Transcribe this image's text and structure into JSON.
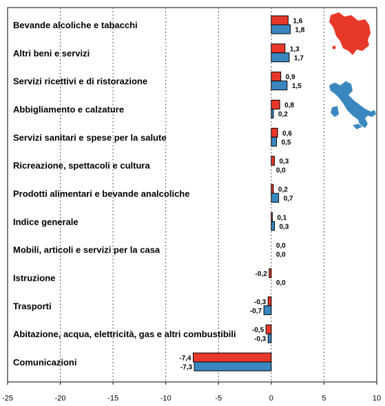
{
  "chart_data": {
    "type": "bar",
    "orientation": "horizontal",
    "categories": [
      "Bevande alcoliche e tabacchi",
      "Altri beni e servizi",
      "Servizi ricettivi e di ristorazione",
      "Abbigliamento e calzature",
      "Servizi sanitari e spese per la salute",
      "Ricreazione, spettacoli e cultura",
      "Prodotti alimentari e bevande analcoliche",
      "Indice generale",
      "Mobili, articoli e servizi per la casa",
      "Istruzione",
      "Trasporti",
      "Abitazione, acqua, elettricità, gas e altri combustibili",
      "Comunicazioni"
    ],
    "series": [
      {
        "color": "#e8382a",
        "values": [
          1.6,
          1.3,
          0.9,
          0.8,
          0.6,
          0.3,
          0.2,
          0.1,
          0.0,
          -0.2,
          -0.3,
          -0.5,
          -7.4
        ],
        "labels": [
          "1,6",
          "1,3",
          "0,9",
          "0,8",
          "0,6",
          "0,3",
          "0,2",
          "0,1",
          "0,0",
          "-0,2",
          "-0,3",
          "-0,5",
          "-7,4"
        ]
      },
      {
        "color": "#3a87bf",
        "values": [
          1.8,
          1.7,
          1.5,
          0.2,
          0.5,
          0.0,
          0.7,
          0.3,
          0.0,
          0.0,
          -0.7,
          -0.3,
          -7.3
        ],
        "labels": [
          "1,8",
          "1,7",
          "1,5",
          "0,2",
          "0,5",
          "0,0",
          "0,7",
          "0,3",
          "0,0",
          "0,0",
          "-0,7",
          "-0,3",
          "-7,3"
        ]
      }
    ],
    "xlim": [
      -25,
      10
    ],
    "xticks": [
      -25,
      -20,
      -15,
      -10,
      -5,
      0,
      5,
      10
    ],
    "xtick_labels": [
      "-25",
      "-20",
      "-15",
      "-10",
      "-5",
      "0",
      "5",
      "10"
    ],
    "grid": "vertical dotted",
    "legend": "map icons top-right (red: Toscana, blue: Italia)"
  },
  "legend_icons": [
    {
      "name": "tuscany-map-icon",
      "color": "#e8382a"
    },
    {
      "name": "italy-map-icon",
      "color": "#3a87bf"
    }
  ]
}
